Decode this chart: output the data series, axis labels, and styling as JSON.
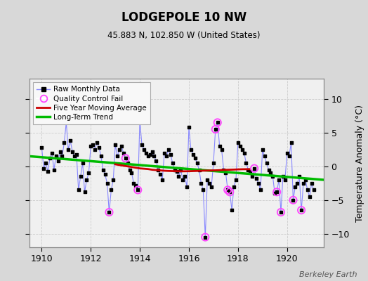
{
  "title": "LODGEPOLE 10 NW",
  "subtitle": "45.883 N, 102.850 W (United States)",
  "ylabel": "Temperature Anomaly (°C)",
  "watermark": "Berkeley Earth",
  "xlim": [
    1909.5,
    1921.5
  ],
  "ylim": [
    -12,
    13
  ],
  "yticks": [
    -10,
    -5,
    0,
    5,
    10
  ],
  "xticks": [
    1910,
    1912,
    1914,
    1916,
    1918,
    1920
  ],
  "bg_color": "#d8d8d8",
  "plot_bg_color": "#f0f0f0",
  "raw_line_color": "#8888ff",
  "raw_marker_color": "#000000",
  "qc_color": "#ff44ff",
  "moving_avg_color": "#cc0000",
  "trend_color": "#00bb00",
  "raw_data": [
    [
      1910.0,
      2.8
    ],
    [
      1910.083,
      -0.3
    ],
    [
      1910.167,
      0.5
    ],
    [
      1910.25,
      -0.8
    ],
    [
      1910.333,
      1.2
    ],
    [
      1910.417,
      2.0
    ],
    [
      1910.5,
      -0.5
    ],
    [
      1910.583,
      1.5
    ],
    [
      1910.667,
      0.8
    ],
    [
      1910.75,
      2.2
    ],
    [
      1910.833,
      1.5
    ],
    [
      1910.917,
      3.5
    ],
    [
      1911.0,
      6.5
    ],
    [
      1911.083,
      2.5
    ],
    [
      1911.167,
      3.8
    ],
    [
      1911.25,
      2.2
    ],
    [
      1911.333,
      1.5
    ],
    [
      1911.417,
      1.8
    ],
    [
      1911.5,
      -3.5
    ],
    [
      1911.583,
      -1.5
    ],
    [
      1911.667,
      0.5
    ],
    [
      1911.75,
      -3.8
    ],
    [
      1911.833,
      -2.0
    ],
    [
      1911.917,
      -1.0
    ],
    [
      1912.0,
      3.0
    ],
    [
      1912.083,
      3.2
    ],
    [
      1912.167,
      2.5
    ],
    [
      1912.25,
      3.5
    ],
    [
      1912.333,
      2.8
    ],
    [
      1912.417,
      1.5
    ],
    [
      1912.5,
      -0.5
    ],
    [
      1912.583,
      -1.2
    ],
    [
      1912.667,
      -2.5
    ],
    [
      1912.75,
      -6.8
    ],
    [
      1912.833,
      -3.5
    ],
    [
      1912.917,
      -2.0
    ],
    [
      1913.0,
      3.2
    ],
    [
      1913.083,
      1.5
    ],
    [
      1913.167,
      2.5
    ],
    [
      1913.25,
      3.0
    ],
    [
      1913.333,
      2.0
    ],
    [
      1913.417,
      1.2
    ],
    [
      1913.5,
      0.5
    ],
    [
      1913.583,
      -0.5
    ],
    [
      1913.667,
      -1.0
    ],
    [
      1913.75,
      -2.5
    ],
    [
      1913.833,
      -2.8
    ],
    [
      1913.917,
      -3.5
    ],
    [
      1914.0,
      6.8
    ],
    [
      1914.083,
      3.2
    ],
    [
      1914.167,
      2.5
    ],
    [
      1914.25,
      2.0
    ],
    [
      1914.333,
      1.5
    ],
    [
      1914.417,
      1.8
    ],
    [
      1914.5,
      2.2
    ],
    [
      1914.583,
      1.5
    ],
    [
      1914.667,
      0.8
    ],
    [
      1914.75,
      -0.5
    ],
    [
      1914.833,
      -1.2
    ],
    [
      1914.917,
      -2.0
    ],
    [
      1915.0,
      2.0
    ],
    [
      1915.083,
      1.5
    ],
    [
      1915.167,
      2.5
    ],
    [
      1915.25,
      1.8
    ],
    [
      1915.333,
      0.5
    ],
    [
      1915.417,
      -0.5
    ],
    [
      1915.5,
      -0.8
    ],
    [
      1915.583,
      -1.5
    ],
    [
      1915.667,
      -0.5
    ],
    [
      1915.75,
      -2.0
    ],
    [
      1915.833,
      -1.5
    ],
    [
      1915.917,
      -3.0
    ],
    [
      1916.0,
      5.8
    ],
    [
      1916.083,
      2.5
    ],
    [
      1916.167,
      1.8
    ],
    [
      1916.25,
      1.2
    ],
    [
      1916.333,
      0.5
    ],
    [
      1916.417,
      -0.5
    ],
    [
      1916.5,
      -2.5
    ],
    [
      1916.583,
      -3.5
    ],
    [
      1916.667,
      -10.5
    ],
    [
      1916.75,
      -2.0
    ],
    [
      1916.833,
      -2.5
    ],
    [
      1916.917,
      -3.0
    ],
    [
      1917.0,
      0.5
    ],
    [
      1917.083,
      5.5
    ],
    [
      1917.167,
      6.5
    ],
    [
      1917.25,
      3.0
    ],
    [
      1917.333,
      2.5
    ],
    [
      1917.417,
      -0.5
    ],
    [
      1917.5,
      -1.0
    ],
    [
      1917.583,
      -3.5
    ],
    [
      1917.667,
      -3.8
    ],
    [
      1917.75,
      -6.5
    ],
    [
      1917.833,
      -3.0
    ],
    [
      1917.917,
      -2.0
    ],
    [
      1918.0,
      3.5
    ],
    [
      1918.083,
      3.0
    ],
    [
      1918.167,
      2.5
    ],
    [
      1918.25,
      2.0
    ],
    [
      1918.333,
      0.5
    ],
    [
      1918.417,
      -0.5
    ],
    [
      1918.5,
      -0.8
    ],
    [
      1918.583,
      -1.5
    ],
    [
      1918.667,
      -0.3
    ],
    [
      1918.75,
      -1.8
    ],
    [
      1918.833,
      -2.5
    ],
    [
      1918.917,
      -3.5
    ],
    [
      1919.0,
      2.5
    ],
    [
      1919.083,
      1.5
    ],
    [
      1919.167,
      0.5
    ],
    [
      1919.25,
      -0.5
    ],
    [
      1919.333,
      -1.0
    ],
    [
      1919.417,
      -1.5
    ],
    [
      1919.5,
      -4.0
    ],
    [
      1919.583,
      -3.8
    ],
    [
      1919.667,
      -2.0
    ],
    [
      1919.75,
      -6.8
    ],
    [
      1919.833,
      -1.5
    ],
    [
      1919.917,
      -2.0
    ],
    [
      1920.0,
      2.0
    ],
    [
      1920.083,
      1.5
    ],
    [
      1920.167,
      3.5
    ],
    [
      1920.25,
      -5.0
    ],
    [
      1920.333,
      -3.0
    ],
    [
      1920.417,
      -2.5
    ],
    [
      1920.5,
      -1.5
    ],
    [
      1920.583,
      -6.5
    ],
    [
      1920.667,
      -2.5
    ],
    [
      1920.75,
      -2.0
    ],
    [
      1920.833,
      -3.5
    ],
    [
      1920.917,
      -4.5
    ],
    [
      1921.0,
      -2.5
    ],
    [
      1921.083,
      -3.5
    ]
  ],
  "qc_fail_points": [
    [
      1912.75,
      -6.8
    ],
    [
      1913.417,
      1.2
    ],
    [
      1913.917,
      -3.5
    ],
    [
      1916.667,
      -10.5
    ],
    [
      1917.083,
      5.5
    ],
    [
      1917.167,
      6.5
    ],
    [
      1917.583,
      -3.5
    ],
    [
      1917.667,
      -3.8
    ],
    [
      1918.667,
      -0.3
    ],
    [
      1919.583,
      -3.8
    ],
    [
      1919.75,
      -6.8
    ],
    [
      1920.25,
      -5.0
    ],
    [
      1920.583,
      -6.5
    ]
  ],
  "moving_avg": [
    [
      1913.0,
      0.3
    ],
    [
      1913.167,
      0.2
    ],
    [
      1913.333,
      0.1
    ],
    [
      1913.5,
      0.0
    ],
    [
      1913.667,
      -0.1
    ],
    [
      1913.833,
      -0.2
    ],
    [
      1914.0,
      -0.3
    ],
    [
      1914.167,
      -0.35
    ],
    [
      1914.333,
      -0.4
    ],
    [
      1914.5,
      -0.5
    ],
    [
      1914.667,
      -0.55
    ],
    [
      1914.833,
      -0.6
    ],
    [
      1915.0,
      -0.65
    ],
    [
      1915.167,
      -0.68
    ],
    [
      1915.333,
      -0.7
    ],
    [
      1915.5,
      -0.72
    ],
    [
      1915.667,
      -0.73
    ],
    [
      1915.833,
      -0.73
    ],
    [
      1916.0,
      -0.72
    ],
    [
      1916.167,
      -0.7
    ],
    [
      1916.333,
      -0.68
    ],
    [
      1916.5,
      -0.65
    ],
    [
      1916.667,
      -0.63
    ],
    [
      1916.833,
      -0.62
    ],
    [
      1917.0,
      -0.6
    ],
    [
      1917.167,
      -0.58
    ],
    [
      1917.333,
      -0.55
    ],
    [
      1917.5,
      -0.52
    ],
    [
      1917.667,
      -0.5
    ],
    [
      1917.833,
      -0.48
    ],
    [
      1918.0,
      -0.45
    ],
    [
      1918.167,
      -0.43
    ],
    [
      1918.333,
      -0.42
    ],
    [
      1918.5,
      -0.42
    ]
  ],
  "trend_x": [
    1909.5,
    1921.5
  ],
  "trend_y": [
    1.5,
    -2.0
  ]
}
